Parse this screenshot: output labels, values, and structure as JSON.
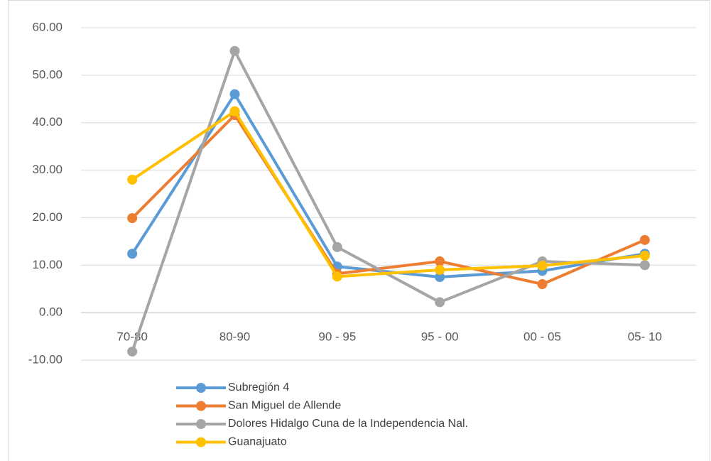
{
  "chart_data": {
    "type": "line",
    "categories": [
      "70-80",
      "80-90",
      "90 - 95",
      "95 - 00",
      "00 - 05",
      "05- 10"
    ],
    "series": [
      {
        "name": "Subregión 4",
        "color": "#5b9bd5",
        "values": [
          12.4,
          46.0,
          9.7,
          7.5,
          8.8,
          12.4
        ]
      },
      {
        "name": "San Miguel de Allende",
        "color": "#ed7d31",
        "values": [
          19.9,
          41.6,
          8.2,
          10.8,
          6.0,
          15.3
        ]
      },
      {
        "name": "Dolores Hidalgo Cuna de la Independencia Nal.",
        "color": "#a5a5a5",
        "values": [
          -8.2,
          55.1,
          13.8,
          2.2,
          10.8,
          10.0
        ]
      },
      {
        "name": "Guanajuato",
        "color": "#ffc000",
        "values": [
          28.0,
          42.4,
          7.6,
          9.0,
          9.9,
          12.0
        ]
      }
    ],
    "ylim": [
      -10,
      60
    ],
    "yticks": [
      {
        "value": -10,
        "label": "-10.00"
      },
      {
        "value": 0,
        "label": "0.00"
      },
      {
        "value": 10,
        "label": "10.00"
      },
      {
        "value": 20,
        "label": "20.00"
      },
      {
        "value": 30,
        "label": "30.00"
      },
      {
        "value": 40,
        "label": "40.00"
      },
      {
        "value": 50,
        "label": "50.00"
      },
      {
        "value": 60,
        "label": "60.00"
      }
    ],
    "grid": true,
    "legend": "bottom-left"
  }
}
